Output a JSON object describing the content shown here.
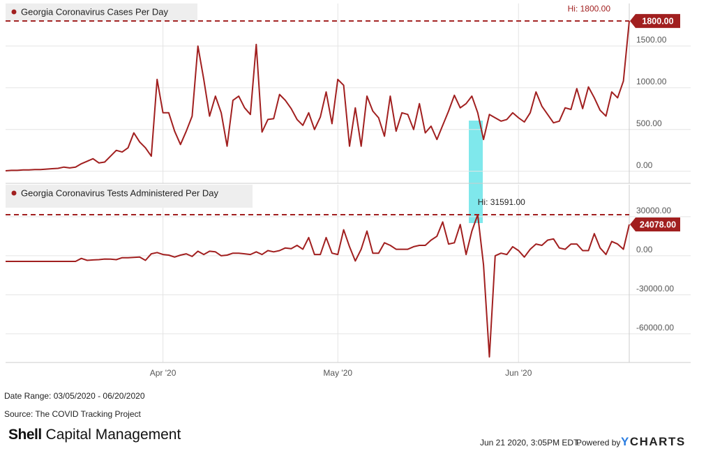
{
  "chart_data": [
    {
      "type": "line",
      "series": [
        {
          "name": "Georgia Coronavirus Cases Per Day",
          "color": "#a11f1f",
          "values": [
            5,
            10,
            10,
            15,
            15,
            20,
            20,
            25,
            30,
            35,
            50,
            40,
            50,
            90,
            120,
            150,
            100,
            110,
            180,
            250,
            230,
            280,
            460,
            350,
            280,
            180,
            1100,
            700,
            700,
            480,
            320,
            480,
            660,
            1500,
            1100,
            660,
            900,
            700,
            300,
            850,
            900,
            760,
            680,
            1520,
            470,
            620,
            630,
            920,
            850,
            750,
            620,
            550,
            700,
            500,
            650,
            950,
            570,
            1100,
            1030,
            300,
            760,
            300,
            900,
            720,
            640,
            420,
            900,
            480,
            700,
            680,
            500,
            810,
            460,
            540,
            380,
            550,
            720,
            910,
            760,
            810,
            900,
            700,
            380,
            680,
            640,
            600,
            620,
            700,
            640,
            590,
            700,
            950,
            780,
            680,
            580,
            600,
            760,
            740,
            990,
            750,
            1010,
            880,
            730,
            660,
            950,
            880,
            1080,
            1800
          ],
          "hi_label": "Hi: 1800.00",
          "last_label": "1800.00"
        }
      ],
      "xlim": [
        0,
        107
      ],
      "ylim": [
        -145,
        2010
      ],
      "yticks": [
        {
          "value": 0,
          "label": "0.00"
        },
        {
          "value": 500,
          "label": "500.00"
        },
        {
          "value": 1000,
          "label": "1000.00"
        },
        {
          "value": 1500,
          "label": "1500.00"
        }
      ],
      "grid": true
    },
    {
      "type": "line",
      "series": [
        {
          "name": "Georgia Coronavirus Tests Administered Per Day",
          "color": "#a11f1f",
          "values": [
            -4300,
            -4300,
            -4300,
            -4300,
            -4300,
            -4300,
            -4300,
            -4300,
            -4300,
            -4300,
            -4300,
            -4300,
            -4300,
            -2000,
            -3500,
            -3200,
            -3000,
            -2500,
            -2600,
            -3000,
            -1500,
            -1500,
            -1200,
            -1000,
            -3500,
            1500,
            2500,
            1000,
            500,
            -1000,
            500,
            1500,
            -500,
            3500,
            1000,
            3500,
            3000,
            0,
            500,
            2000,
            2000,
            1500,
            1000,
            3000,
            1000,
            4000,
            3000,
            4000,
            6000,
            5500,
            8000,
            5000,
            14000,
            1000,
            1000,
            14000,
            2000,
            1000,
            20000,
            7000,
            -4000,
            5000,
            19000,
            2000,
            2000,
            10000,
            8000,
            5000,
            5000,
            5000,
            7000,
            8000,
            8000,
            12000,
            15000,
            26000,
            9000,
            10000,
            24000,
            1000,
            19000,
            31591,
            -7000,
            -77700,
            0,
            2000,
            1000,
            7000,
            4000,
            -1000,
            5000,
            9000,
            8000,
            12000,
            13000,
            6000,
            5000,
            9000,
            9000,
            4000,
            4000,
            17000,
            6000,
            1000,
            11000,
            9000,
            5000,
            24078
          ],
          "hi_label": "Hi: 31591.00",
          "last_label": "24078.00"
        }
      ],
      "xlim": [
        0,
        107
      ],
      "xticks": [
        {
          "value": 27,
          "label": "Apr '20"
        },
        {
          "value": 57,
          "label": "May '20"
        },
        {
          "value": 88,
          "label": "Jun '20"
        }
      ],
      "ylim": [
        -82000,
        54600
      ],
      "yticks": [
        {
          "value": 30000,
          "label": "30000.00"
        },
        {
          "value": 0,
          "label": "0.00"
        },
        {
          "value": -30000,
          "label": "-30000.00"
        },
        {
          "value": -60000,
          "label": "-60000.00"
        }
      ],
      "grid": true
    }
  ],
  "footer": {
    "date_range": "Date Range: 03/05/2020 - 06/20/2020",
    "source": "Source: The COVID Tracking Project",
    "brand_bold": "Shell",
    "brand": "Capital Management",
    "timestamp": "Jun 21 2020, 3:05PM EDT.",
    "powered": "Powered by",
    "logo": "YCHARTS"
  }
}
